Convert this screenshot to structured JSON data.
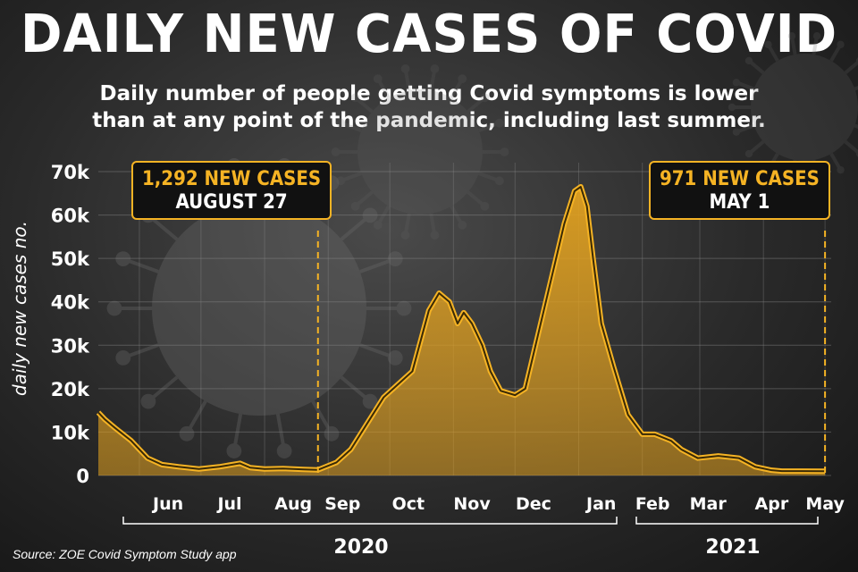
{
  "title": "DAILY NEW CASES OF COVID",
  "subtitle": {
    "line1": "Daily number of people getting Covid symptoms is lower",
    "line2": "than at any point of the pandemic, including last summer."
  },
  "source": "Source: ZOE Covid Symptom Study app",
  "colors": {
    "fill": "#e0a020",
    "line": "#f5b324",
    "background": "#2a2a2a",
    "text": "#ffffff"
  },
  "callouts": [
    {
      "line1": "1,292 NEW CASES",
      "line2": "AUGUST 27"
    },
    {
      "line1": "971 NEW CASES",
      "line2": "MAY 1"
    }
  ],
  "years": [
    {
      "label": "2020"
    },
    {
      "label": "2021"
    }
  ],
  "chart_data": {
    "type": "area",
    "title": "DAILY NEW CASES OF COVID",
    "ylabel": "daily new cases no.",
    "xlabel": "",
    "ylim": [
      0,
      70000
    ],
    "y_ticks": [
      0,
      10000,
      20000,
      30000,
      40000,
      50000,
      60000,
      70000
    ],
    "y_tick_labels": [
      "0",
      "10k",
      "20k",
      "30k",
      "40k",
      "50k",
      "60k",
      "70k"
    ],
    "x_tick_labels": [
      "Jun",
      "Jul",
      "Aug",
      "Sep",
      "Oct",
      "Nov",
      "Dec",
      "Jan",
      "Feb",
      "Mar",
      "Apr",
      "May"
    ],
    "x": [
      "2020-05-12",
      "2020-05-15",
      "2020-05-20",
      "2020-05-28",
      "2020-06-05",
      "2020-06-12",
      "2020-06-20",
      "2020-06-30",
      "2020-07-10",
      "2020-07-20",
      "2020-07-25",
      "2020-08-01",
      "2020-08-10",
      "2020-08-20",
      "2020-08-27",
      "2020-09-05",
      "2020-09-12",
      "2020-09-20",
      "2020-09-28",
      "2020-10-05",
      "2020-10-12",
      "2020-10-16",
      "2020-10-20",
      "2020-10-25",
      "2020-10-30",
      "2020-11-03",
      "2020-11-06",
      "2020-11-10",
      "2020-11-15",
      "2020-11-19",
      "2020-11-24",
      "2020-12-01",
      "2020-12-06",
      "2020-12-10",
      "2020-12-15",
      "2020-12-20",
      "2020-12-25",
      "2020-12-30",
      "2021-01-02",
      "2021-01-05",
      "2021-01-08",
      "2021-01-12",
      "2021-01-18",
      "2021-01-25",
      "2021-02-01",
      "2021-02-07",
      "2021-02-15",
      "2021-02-20",
      "2021-02-28",
      "2021-03-10",
      "2021-03-20",
      "2021-03-28",
      "2021-04-05",
      "2021-04-10",
      "2021-04-20",
      "2021-05-01"
    ],
    "series": [
      {
        "values": [
          14500,
          13000,
          11000,
          8000,
          4000,
          2500,
          2000,
          1500,
          2000,
          2800,
          1800,
          1500,
          1600,
          1400,
          1292,
          3000,
          6000,
          12000,
          18000,
          21000,
          24000,
          31000,
          38000,
          42000,
          40000,
          35000,
          37500,
          35000,
          30000,
          24000,
          19500,
          18500,
          20000,
          28000,
          38000,
          48000,
          58000,
          65500,
          66500,
          62000,
          50000,
          35000,
          25000,
          14000,
          9500,
          9500,
          8000,
          6000,
          4000,
          4500,
          4000,
          2000,
          1200,
          1000,
          1000,
          971
        ]
      }
    ],
    "markers": [
      {
        "date": "2020-08-27",
        "value": 1292
      },
      {
        "date": "2021-05-01",
        "value": 971
      }
    ],
    "grid": true,
    "legend": "none"
  }
}
